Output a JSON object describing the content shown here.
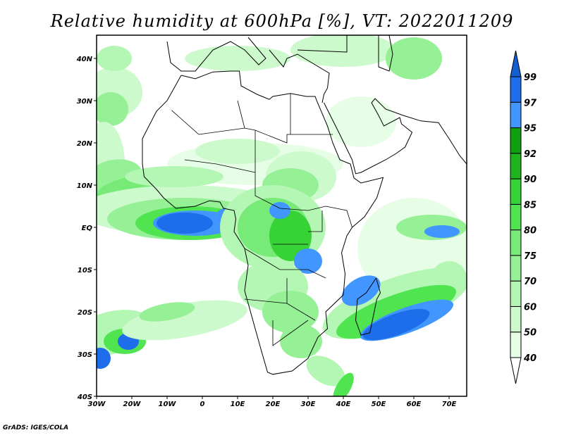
{
  "title": "Relative humidity at 600hPa [%], VT: 2022011209",
  "credit": "GrADS: IGES/COLA",
  "axes": {
    "lon_ticks": [
      "30W",
      "20W",
      "10W",
      "0",
      "10E",
      "20E",
      "30E",
      "40E",
      "50E",
      "60E",
      "70E"
    ],
    "lat_ticks": [
      "40N",
      "30N",
      "20N",
      "10N",
      "EQ",
      "10S",
      "20S",
      "30S",
      "40S"
    ],
    "lon_range": [
      -30,
      75
    ],
    "lat_range": [
      -40,
      45.5
    ]
  },
  "legend": {
    "levels": [
      "40",
      "50",
      "60",
      "70",
      "75",
      "80",
      "85",
      "90",
      "92",
      "95",
      "97",
      "99"
    ],
    "colors": [
      "#e6fde6",
      "#ccfacc",
      "#b4f6b4",
      "#96f096",
      "#78ea78",
      "#50e450",
      "#36d236",
      "#1eb41e",
      "#0fa00f",
      "#4196ff",
      "#1e6eeb"
    ],
    "over_color": "#1560d0",
    "under_color": "#ffffff"
  }
}
